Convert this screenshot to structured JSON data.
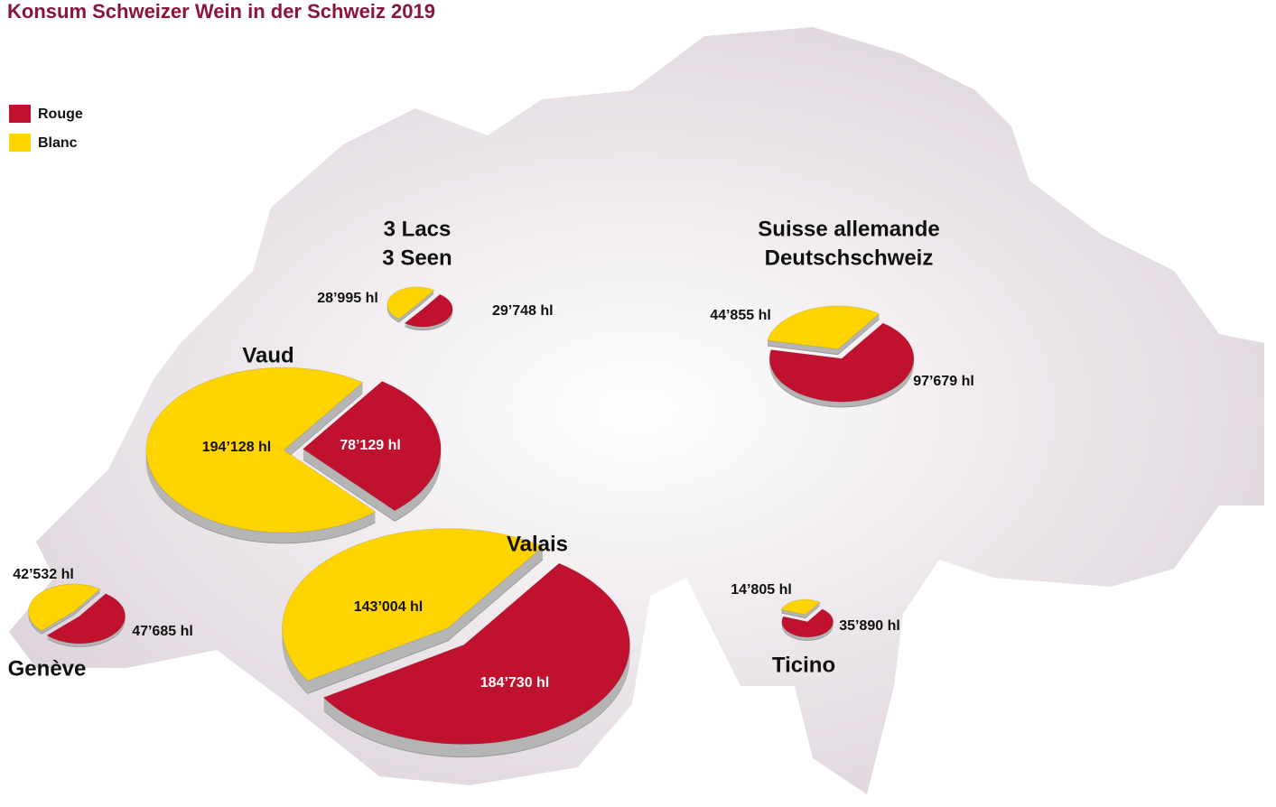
{
  "chart_data": {
    "type": "pie",
    "title": "Konsum Schweizer Wein in der Schweiz 2019",
    "categories": [
      [
        "3 Lacs",
        "3 Seen"
      ],
      [
        "Suisse allemande",
        "Deutschschweiz"
      ],
      [
        "Vaud"
      ],
      [
        "Genève"
      ],
      [
        "Valais"
      ],
      [
        "Ticino"
      ]
    ],
    "series": [
      {
        "name": "Rouge",
        "color": "#c0122f",
        "values": [
          29748,
          97679,
          78129,
          47685,
          184730,
          35890
        ],
        "value_labels": [
          "29’748 hl",
          "97’679 hl",
          "78’129 hl",
          "47’685 hl",
          "184’730 hl",
          "35’890 hl"
        ]
      },
      {
        "name": "Blanc",
        "color": "#ffd400",
        "values": [
          28995,
          44855,
          194128,
          42532,
          143004,
          14805
        ],
        "value_labels": [
          "28’995 hl",
          "44’855 hl",
          "194’128 hl",
          "42’532 hl",
          "143’004 hl",
          "14’805 hl"
        ]
      }
    ]
  }
}
